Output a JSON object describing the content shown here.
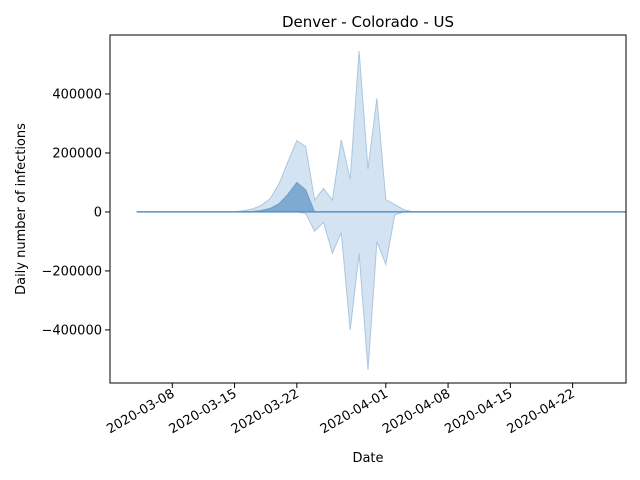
{
  "chart_data": {
    "type": "area",
    "title": "Denver - Colorado - US",
    "xlabel": "Date",
    "ylabel": "Daily number of infections",
    "x_ticks": [
      "2020-03-08",
      "2020-03-15",
      "2020-03-22",
      "2020-04-01",
      "2020-04-08",
      "2020-04-15",
      "2020-04-22"
    ],
    "y_ticks": [
      -400000,
      -200000,
      0,
      200000,
      400000
    ],
    "y_tick_labels": [
      "−400000",
      "−200000",
      "0",
      "200000",
      "400000"
    ],
    "xlim": [
      "2020-03-01",
      "2020-04-28"
    ],
    "ylim": [
      -580000,
      600000
    ],
    "grid": false,
    "colors": {
      "band_fill": "#c6d9ec",
      "band_edge": "#aac6e0",
      "mid_fill": "#6f9fcb",
      "line": "#5b93c6"
    },
    "series": [
      {
        "role": "upper_band",
        "x": [
          "2020-03-04",
          "2020-03-14",
          "2020-03-15",
          "2020-03-16",
          "2020-03-17",
          "2020-03-18",
          "2020-03-19",
          "2020-03-20",
          "2020-03-21",
          "2020-03-22",
          "2020-03-23",
          "2020-03-24",
          "2020-03-25",
          "2020-03-26",
          "2020-03-27",
          "2020-03-28",
          "2020-03-29",
          "2020-03-30",
          "2020-03-31",
          "2020-04-01",
          "2020-04-02",
          "2020-04-03",
          "2020-04-04",
          "2020-04-28"
        ],
        "values": [
          0,
          0,
          1000,
          4000,
          10000,
          22000,
          45000,
          95000,
          170000,
          242000,
          222000,
          40000,
          80000,
          40000,
          245000,
          110000,
          545000,
          145000,
          385000,
          42000,
          25000,
          8000,
          0,
          0
        ]
      },
      {
        "role": "lower_band",
        "x": [
          "2020-03-04",
          "2020-03-22",
          "2020-03-23",
          "2020-03-24",
          "2020-03-25",
          "2020-03-26",
          "2020-03-27",
          "2020-03-28",
          "2020-03-29",
          "2020-03-30",
          "2020-03-31",
          "2020-04-01",
          "2020-04-02",
          "2020-04-03",
          "2020-04-04",
          "2020-04-28"
        ],
        "values": [
          0,
          0,
          -5000,
          -65000,
          -35000,
          -140000,
          -70000,
          -400000,
          -140000,
          -535000,
          -100000,
          -178000,
          -10000,
          0,
          0,
          0
        ]
      },
      {
        "role": "middle_area",
        "x": [
          "2020-03-04",
          "2020-03-15",
          "2020-03-16",
          "2020-03-17",
          "2020-03-18",
          "2020-03-19",
          "2020-03-20",
          "2020-03-21",
          "2020-03-22",
          "2020-03-23",
          "2020-03-24",
          "2020-04-28"
        ],
        "values": [
          0,
          0,
          500,
          2000,
          5000,
          12000,
          28000,
          60000,
          100000,
          75000,
          0,
          0
        ]
      },
      {
        "role": "line",
        "x": [
          "2020-03-04",
          "2020-04-28"
        ],
        "values": [
          0,
          0
        ]
      }
    ]
  }
}
